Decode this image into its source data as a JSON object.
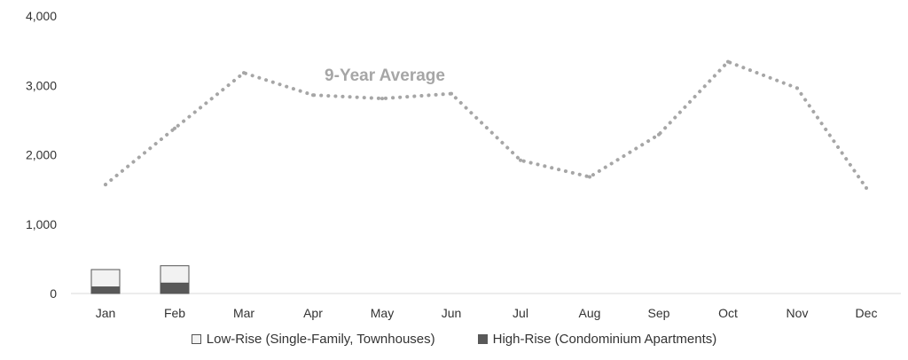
{
  "chart_data": {
    "type": "bar",
    "categories": [
      "Jan",
      "Feb",
      "Mar",
      "Apr",
      "May",
      "Jun",
      "Jul",
      "Aug",
      "Sep",
      "Oct",
      "Nov",
      "Dec"
    ],
    "ylim": [
      0,
      4000
    ],
    "yticks": [
      "0",
      "1,000",
      "2,000",
      "3,000",
      "4,000"
    ],
    "stacked": true,
    "series": [
      {
        "name": "High-Rise (Condominium Apartments)",
        "type": "bar",
        "color": "#595959",
        "values": [
          95,
          150,
          null,
          null,
          null,
          null,
          null,
          null,
          null,
          null,
          null,
          null
        ]
      },
      {
        "name": "Low-Rise (Single-Family, Townhouses)",
        "type": "bar",
        "color": "#f2f2f2",
        "values": [
          250,
          250,
          null,
          null,
          null,
          null,
          null,
          null,
          null,
          null,
          null,
          null
        ]
      },
      {
        "name": "9-Year Average",
        "type": "line",
        "style": "dotted",
        "color": "#a6a6a6",
        "values": [
          1570,
          2380,
          3180,
          2860,
          2810,
          2880,
          1920,
          1680,
          2290,
          3340,
          2960,
          1520
        ]
      }
    ],
    "annotations": [
      {
        "text": "9-Year Average"
      }
    ],
    "legend": {
      "position": "bottom",
      "items": [
        {
          "label": "Low-Rise (Single-Family, Townhouses)"
        },
        {
          "label": "High-Rise (Condominium Apartments)"
        }
      ]
    },
    "grid": false
  }
}
